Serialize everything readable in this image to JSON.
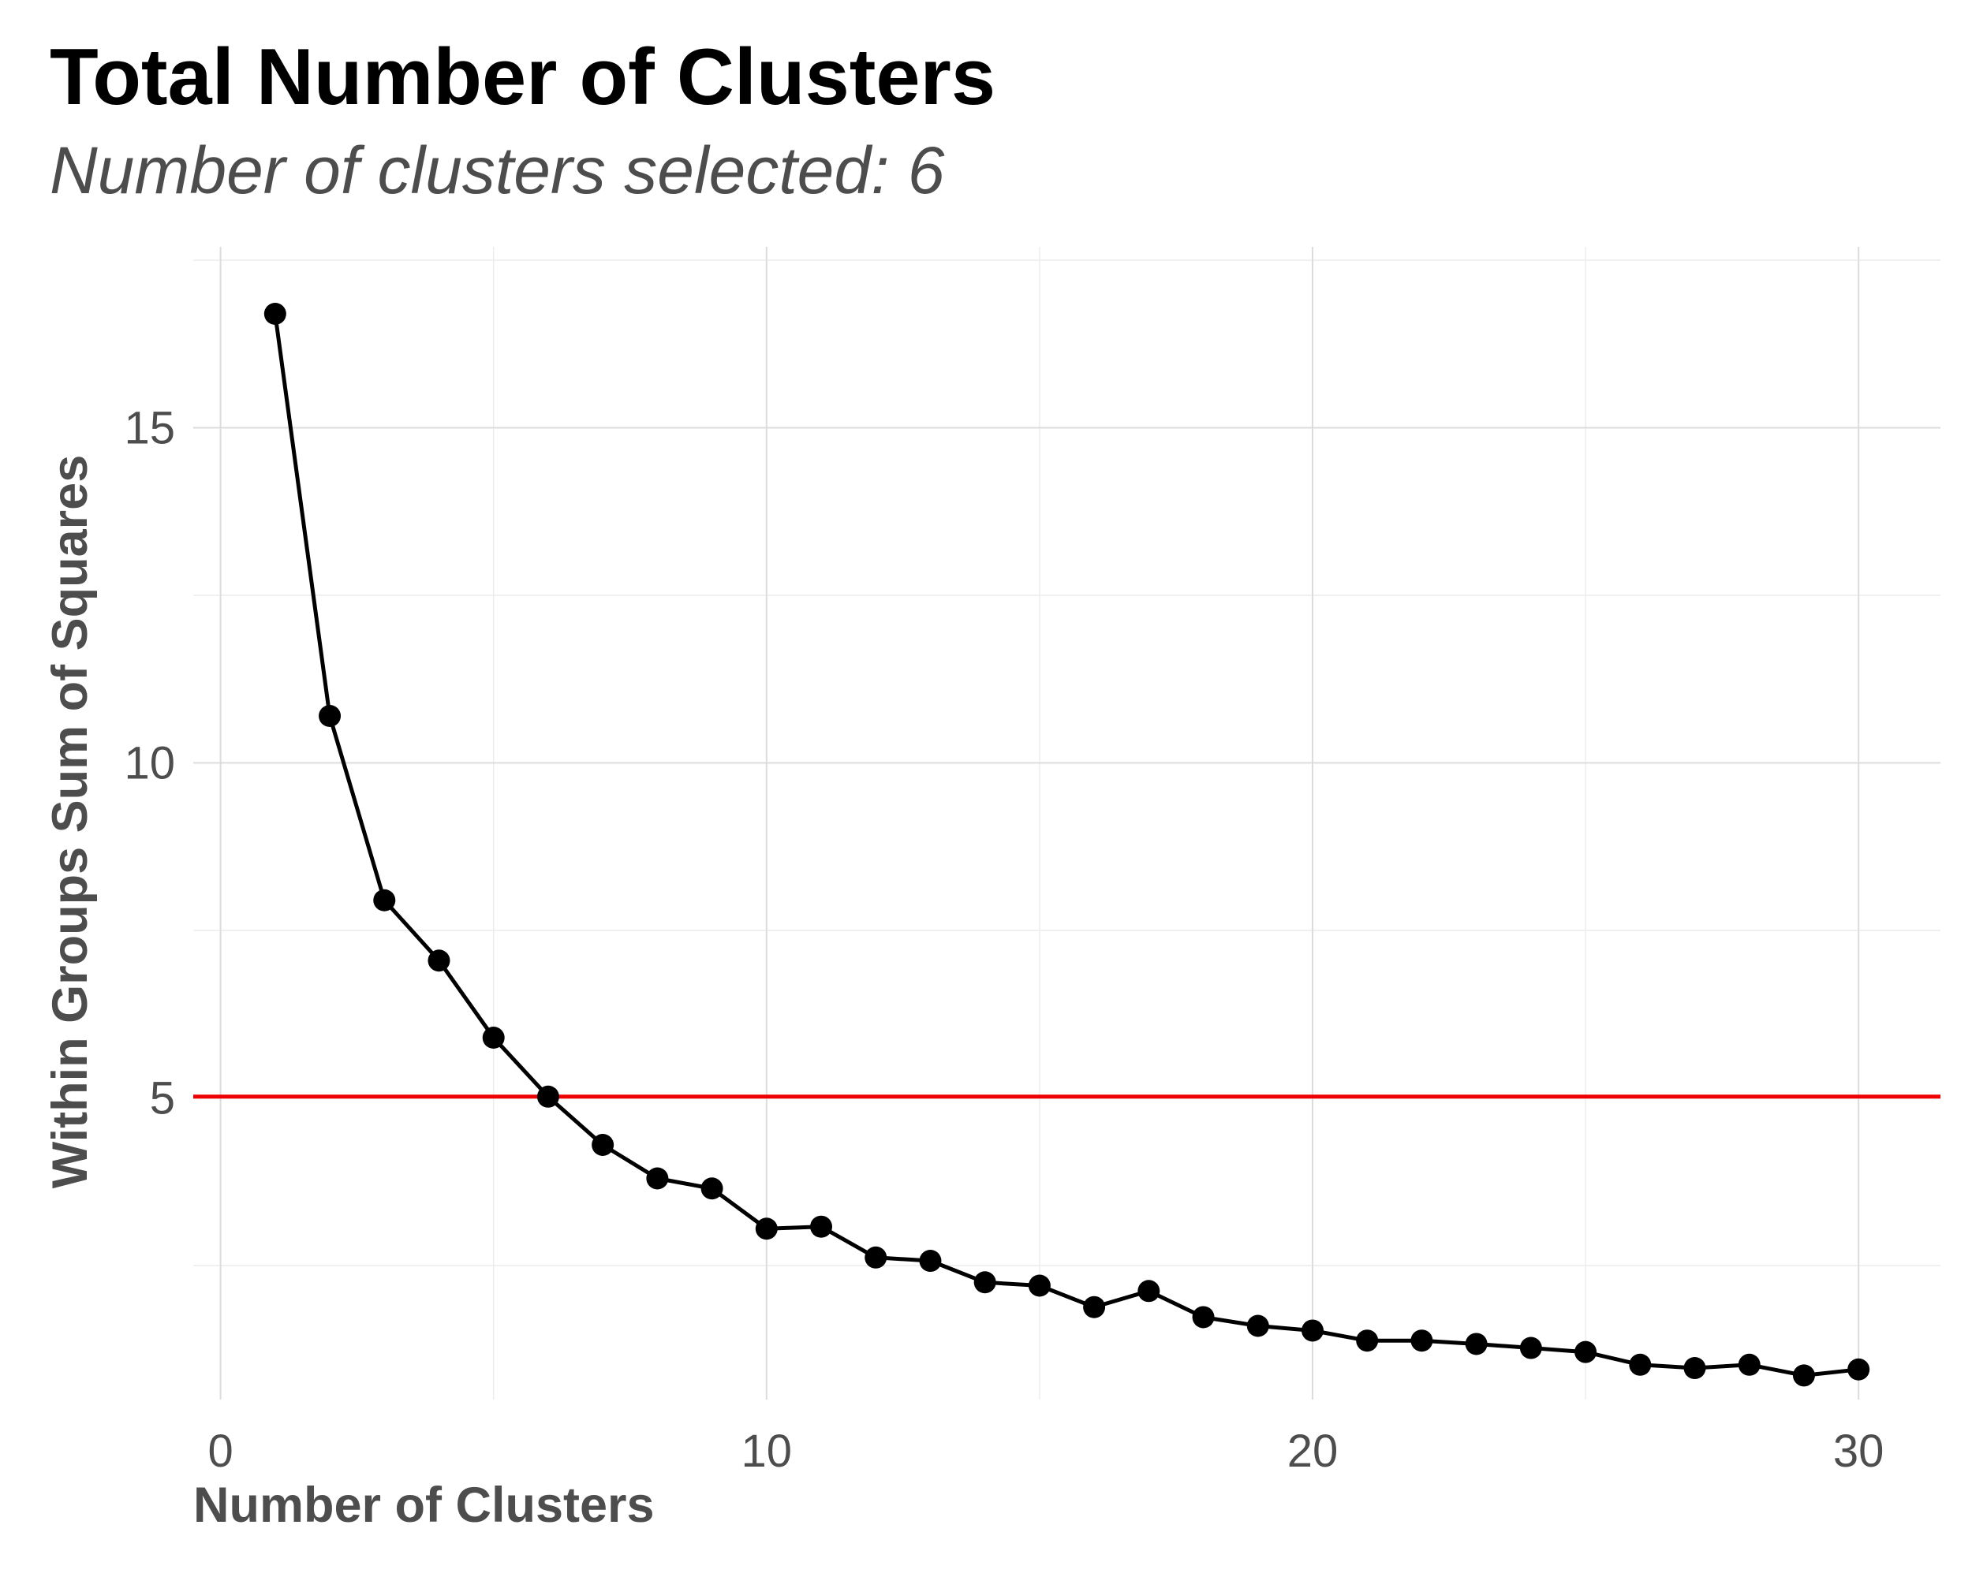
{
  "chart_data": {
    "type": "line",
    "title": "Total Number of Clusters",
    "subtitle": "Number of clusters selected: 6",
    "xlabel": "Number of Clusters",
    "ylabel": "Within Groups Sum of Squares",
    "xlim": [
      -0.5,
      31.5
    ],
    "ylim": [
      0.5,
      17.7
    ],
    "x_ticks": [
      0,
      10,
      20,
      30
    ],
    "x_tick_labels": [
      "0",
      "10",
      "20",
      "30"
    ],
    "x_minor_ticks": [
      5,
      15,
      25
    ],
    "y_ticks": [
      5,
      10,
      15
    ],
    "y_tick_labels": [
      "5",
      "10",
      "15"
    ],
    "y_minor_ticks": [
      2.5,
      7.5,
      12.5,
      17.5
    ],
    "grid": true,
    "legend": false,
    "series": [
      {
        "color": "#000000",
        "marker": "circle",
        "x": [
          1,
          2,
          3,
          4,
          5,
          6,
          7,
          8,
          9,
          10,
          11,
          12,
          13,
          14,
          15,
          16,
          17,
          18,
          19,
          20,
          21,
          22,
          23,
          24,
          25,
          26,
          27,
          28,
          29,
          30
        ],
        "y": [
          16.7,
          10.7,
          7.95,
          7.05,
          5.9,
          5.02,
          4.3,
          3.8,
          3.65,
          3.05,
          3.08,
          2.62,
          2.57,
          2.25,
          2.2,
          1.88,
          2.12,
          1.73,
          1.6,
          1.53,
          1.38,
          1.38,
          1.33,
          1.27,
          1.21,
          1.02,
          0.97,
          1.02,
          0.86,
          0.95
        ]
      }
    ],
    "hline": {
      "y": 5.02,
      "color": "#ee0000"
    }
  }
}
